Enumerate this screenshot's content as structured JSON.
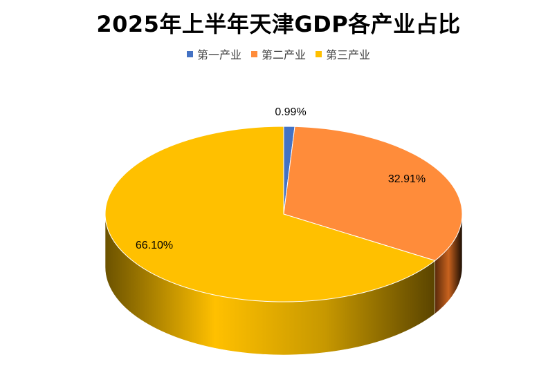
{
  "chart_data": {
    "type": "pie",
    "title": "2025年上半年天津GDP各产业占比",
    "categories": [
      "第一产业",
      "第二产业",
      "第三产业"
    ],
    "values": [
      0.99,
      32.91,
      66.1
    ],
    "data_labels": [
      "0.99%",
      "32.91%",
      "66.10%"
    ],
    "colors": [
      "#4472C4",
      "#FF8C3A",
      "#FFC000"
    ],
    "legend_position": "top",
    "style": "3d"
  }
}
